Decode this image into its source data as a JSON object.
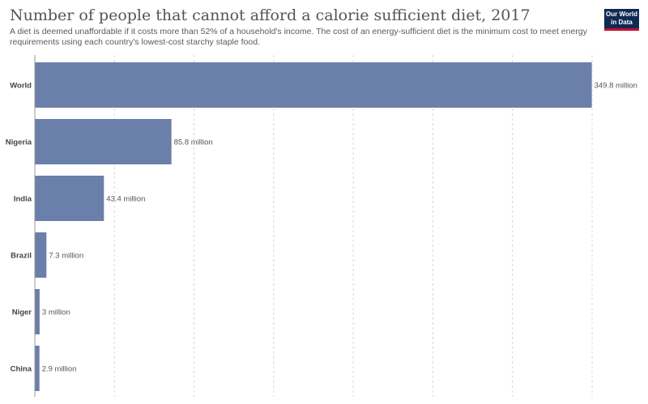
{
  "header": {
    "title": "Number of people that cannot afford a calorie sufficient diet, 2017",
    "subtitle": "A diet is deemed unaffordable if it costs more than 52% of a household's income. The cost of an energy-sufficient diet is the minimum cost to meet energy requirements using each country's lowest-cost starchy staple food.",
    "logo_line1": "Our World",
    "logo_line2": "in Data"
  },
  "colors": {
    "bar": "#6a7fa9",
    "grid": "#d8d8d8",
    "logo_bg": "#0f2a54",
    "logo_accent": "#c8102e"
  },
  "chart_data": {
    "type": "bar",
    "orientation": "horizontal",
    "title": "Number of people that cannot afford a calorie sufficient diet, 2017",
    "categories": [
      "World",
      "Nigeria",
      "India",
      "Brazil",
      "Niger",
      "China"
    ],
    "values": [
      349.8,
      85.8,
      43.4,
      7.3,
      3.0,
      2.9
    ],
    "value_labels": [
      "349.8 million",
      "85.8 million",
      "43.4 million",
      "7.3 million",
      "3 million",
      "2.9 million"
    ],
    "unit": "million",
    "xlim": [
      0,
      350
    ],
    "gridlines": [
      50,
      100,
      150,
      200,
      250,
      300,
      350
    ],
    "grid": true
  }
}
